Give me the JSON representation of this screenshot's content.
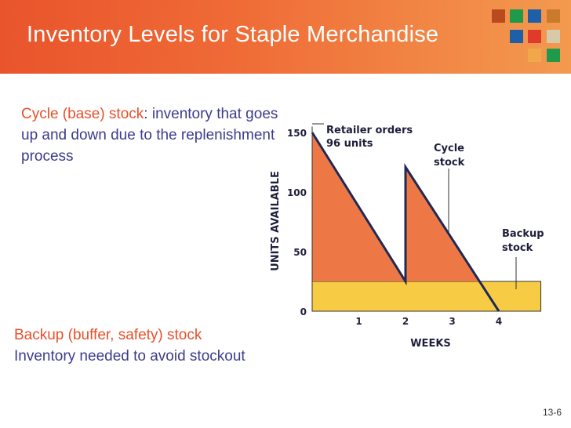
{
  "header": {
    "title": "Inventory Levels for Staple Merchandise",
    "tile_colors": [
      "#b84a1e",
      "#1f9a4a",
      "#1f5fa8",
      "#c97a2a",
      "#1f5fa8",
      "#e03a2a",
      "#d8c9a8",
      "#f0a84a",
      "#1f9a4a"
    ]
  },
  "cycle_text": {
    "term": "Cycle (base) stock",
    "sep": ":",
    "definition": " inventory that goes up and down due to the replenishment process"
  },
  "backup_text": {
    "term": "Backup (buffer, safety) stock",
    "definition": "Inventory needed to avoid stockout"
  },
  "chart_data": {
    "type": "area",
    "ylabel": "UNITS AVAILABLE",
    "xlabel": "WEEKS",
    "y_ticks": [
      "150",
      "100",
      "50",
      "0"
    ],
    "x_ticks": [
      "1",
      "2",
      "3",
      "4"
    ],
    "xlim": [
      0,
      4.9
    ],
    "ylim": [
      0,
      160
    ],
    "backup_level": 25,
    "cycle_stock_points": [
      [
        0,
        150
      ],
      [
        2,
        25
      ],
      [
        2,
        121
      ],
      [
        4,
        0
      ]
    ],
    "annotations": {
      "retailer": [
        "Retailer orders",
        "96 units"
      ],
      "cycle": [
        "Cycle",
        "stock"
      ],
      "backup": [
        "Backup",
        "stock"
      ]
    },
    "colors": {
      "cycle": "#ee7845",
      "backup": "#f7cc44",
      "line": "#1e2a55"
    }
  },
  "slide_number": "13-6"
}
